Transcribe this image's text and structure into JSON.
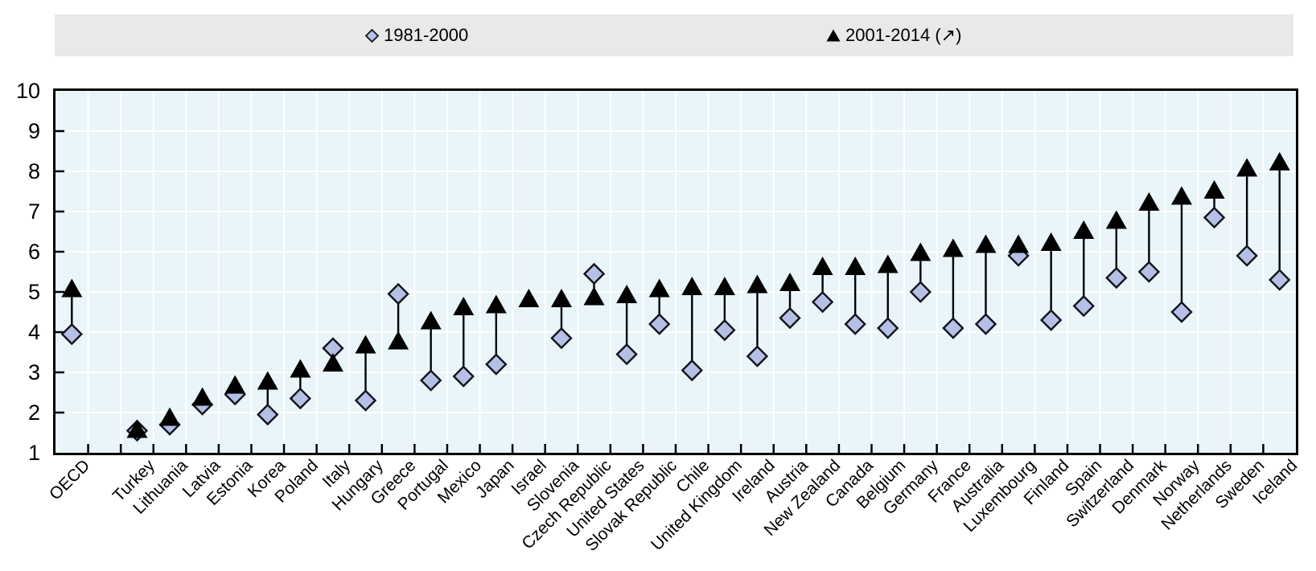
{
  "chart_data": {
    "type": "scatter",
    "subtype": "dumbbell",
    "title": "",
    "xlabel": "",
    "ylabel": "",
    "ylim": [
      1,
      10
    ],
    "yticks": [
      1,
      2,
      3,
      4,
      5,
      6,
      7,
      8,
      9,
      10
    ],
    "grid": true,
    "legend_position": "top",
    "gap_after_first_category": true,
    "categories": [
      "OECD",
      "Turkey",
      "Lithuania",
      "Latvia",
      "Estonia",
      "Korea",
      "Poland",
      "Italy",
      "Hungary",
      "Greece",
      "Portugal",
      "Mexico",
      "Japan",
      "Israel",
      "Slovenia",
      "Czech Republic",
      "United States",
      "Slovak Republic",
      "Chile",
      "United Kingdom",
      "Ireland",
      "Austria",
      "New Zealand",
      "Canada",
      "Belgium",
      "Germany",
      "France",
      "Australia",
      "Luxembourg",
      "Finland",
      "Spain",
      "Switzerland",
      "Denmark",
      "Norway",
      "Netherlands",
      "Sweden",
      "Iceland"
    ],
    "series": [
      {
        "name": "1981-2000",
        "marker": "diamond",
        "fill": "#b4c0e6",
        "stroke": "#14141c",
        "values": [
          3.95,
          1.55,
          1.7,
          2.2,
          2.45,
          1.95,
          2.35,
          3.6,
          2.3,
          4.95,
          2.8,
          2.9,
          3.2,
          null,
          3.85,
          5.45,
          3.45,
          4.2,
          3.05,
          4.05,
          3.4,
          4.35,
          4.75,
          4.2,
          4.1,
          5.0,
          4.1,
          4.2,
          5.9,
          4.3,
          4.65,
          5.35,
          5.5,
          4.5,
          6.85,
          5.9,
          5.3
        ]
      },
      {
        "name": "2001-2014 (↗)",
        "marker": "triangle",
        "fill": "#000000",
        "stroke": "#000000",
        "values": [
          5.1,
          1.6,
          1.9,
          2.4,
          2.7,
          2.8,
          3.1,
          3.25,
          3.7,
          3.8,
          4.3,
          4.65,
          4.7,
          4.85,
          4.85,
          4.9,
          4.95,
          5.1,
          5.15,
          5.15,
          5.2,
          5.25,
          5.65,
          5.65,
          5.7,
          6.0,
          6.1,
          6.2,
          6.2,
          6.25,
          6.55,
          6.8,
          7.25,
          7.4,
          7.55,
          8.1,
          8.25
        ]
      }
    ],
    "colors": {
      "plot_bg": "#e9f5f8",
      "grid": "#ffffff",
      "legend_bg": "#e9e9e9",
      "axis": "#000000"
    }
  }
}
